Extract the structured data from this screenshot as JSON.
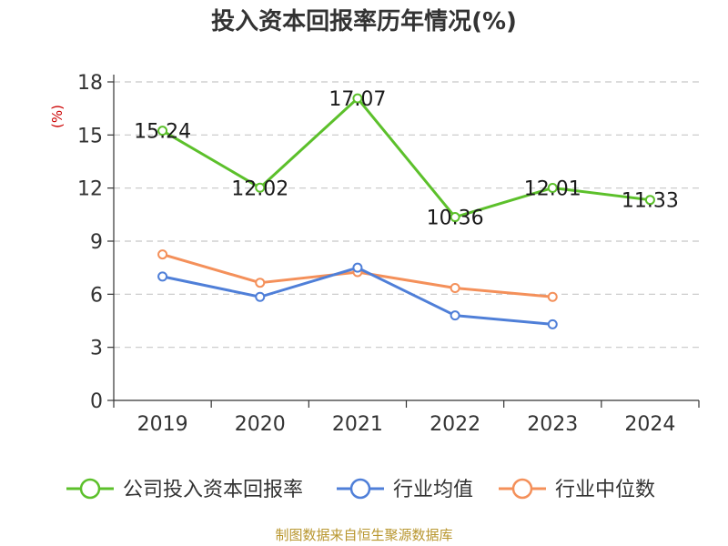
{
  "chart_data": {
    "type": "line",
    "title": "投入资本回报率历年情况(%)",
    "unit_label": "(%)",
    "categories": [
      "2019",
      "2020",
      "2021",
      "2022",
      "2023",
      "2024"
    ],
    "y_ticks": [
      "0",
      "3",
      "6",
      "9",
      "12",
      "15",
      "18"
    ],
    "ylim": [
      0,
      18
    ],
    "grid": true,
    "legend_position": "bottom",
    "series": [
      {
        "name": "公司投入资本回报率",
        "color": "#5cc02b",
        "values": [
          15.24,
          12.02,
          17.07,
          10.36,
          12.01,
          11.33
        ],
        "labels": [
          "15.24",
          "12.02",
          "17.07",
          "10.36",
          "12.01",
          "11.33"
        ]
      },
      {
        "name": "行业均值",
        "color": "#4f7fd8",
        "values": [
          7.0,
          5.85,
          7.5,
          4.8,
          4.3,
          null
        ]
      },
      {
        "name": "行业中位数",
        "color": "#f4905a",
        "values": [
          8.25,
          6.65,
          7.25,
          6.35,
          5.85,
          null
        ]
      }
    ]
  },
  "source": "制图数据来自恒生聚源数据库"
}
